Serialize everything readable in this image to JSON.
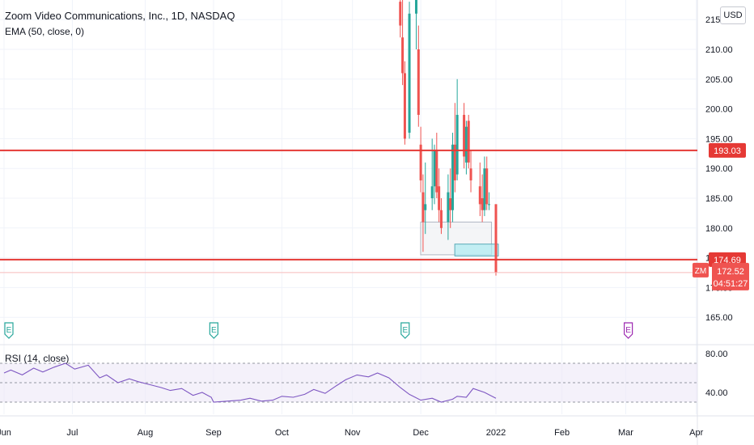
{
  "header": {
    "title": "Zoom Video Communications, Inc., 1D, NASDAQ",
    "indicator": "EMA (50, close, 0)",
    "currency": "USD"
  },
  "rsi_pane": {
    "label": "RSI (14, close)"
  },
  "colors": {
    "up": "#26a69a",
    "down": "#ef5350",
    "level_line": "#e53935",
    "rsi_line": "#7e57c2",
    "rsi_band": "#ede7f6",
    "earnings": "#26a69a",
    "earnings_upcoming": "#9c27b0",
    "box_gray": "#e9ecef",
    "box_teal": "#b2ebf2"
  },
  "chart_data": [
    {
      "type": "candlestick",
      "title": "Zoom Video Communications, Inc., 1D, NASDAQ",
      "symbol": "ZM",
      "currency": "USD",
      "y_ticks": [
        165,
        170,
        175,
        180,
        185,
        190,
        195,
        200,
        205,
        210,
        215
      ],
      "y_tick_labels": [
        "165.00",
        "170.00",
        "175.00",
        "180.00",
        "185.00",
        "190.00",
        "195.00",
        "200.00",
        "205.00",
        "210.00",
        "215.00"
      ],
      "x_tick_labels": [
        "Jun",
        "Jul",
        "Aug",
        "Sep",
        "Oct",
        "Nov",
        "Dec",
        "2022",
        "Feb",
        "Mar",
        "Apr"
      ],
      "x_tick_dates": [
        "2021-06-01",
        "2021-07-01",
        "2021-08-02",
        "2021-09-01",
        "2021-10-01",
        "2021-11-01",
        "2021-12-01",
        "2022-01-03",
        "2022-02-01",
        "2022-03-01",
        "2022-04-01"
      ],
      "candles": [
        {
          "date": "2021-11-22",
          "open": 218,
          "high": 221,
          "low": 212,
          "close": 214
        },
        {
          "date": "2021-11-23",
          "open": 212,
          "high": 219,
          "low": 204,
          "close": 206
        },
        {
          "date": "2021-11-24",
          "open": 206,
          "high": 208,
          "low": 194,
          "close": 195
        },
        {
          "date": "2021-11-26",
          "open": 196,
          "high": 218,
          "low": 195,
          "close": 216
        },
        {
          "date": "2021-11-29",
          "open": 216,
          "high": 221,
          "low": 210,
          "close": 219
        },
        {
          "date": "2021-11-30",
          "open": 210,
          "high": 214,
          "low": 197,
          "close": 199
        },
        {
          "date": "2021-12-01",
          "open": 194,
          "high": 197,
          "low": 186,
          "close": 188
        },
        {
          "date": "2021-12-02",
          "open": 186,
          "high": 189,
          "low": 176,
          "close": 181
        },
        {
          "date": "2021-12-03",
          "open": 183,
          "high": 191,
          "low": 179,
          "close": 184
        },
        {
          "date": "2021-12-06",
          "open": 185,
          "high": 195,
          "low": 183,
          "close": 187
        },
        {
          "date": "2021-12-07",
          "open": 187,
          "high": 194,
          "low": 184,
          "close": 193
        },
        {
          "date": "2021-12-08",
          "open": 193,
          "high": 196,
          "low": 185,
          "close": 186
        },
        {
          "date": "2021-12-09",
          "open": 187,
          "high": 190,
          "low": 181,
          "close": 183
        },
        {
          "date": "2021-12-10",
          "open": 183,
          "high": 185,
          "low": 179,
          "close": 180
        },
        {
          "date": "2021-12-13",
          "open": 181,
          "high": 189,
          "low": 178,
          "close": 186
        },
        {
          "date": "2021-12-14",
          "open": 185,
          "high": 190,
          "low": 180,
          "close": 183
        },
        {
          "date": "2021-12-15",
          "open": 183,
          "high": 196,
          "low": 181,
          "close": 194
        },
        {
          "date": "2021-12-16",
          "open": 194,
          "high": 201,
          "low": 186,
          "close": 188
        },
        {
          "date": "2021-12-17",
          "open": 189,
          "high": 205,
          "low": 188,
          "close": 199
        },
        {
          "date": "2021-12-20",
          "open": 199,
          "high": 201,
          "low": 190,
          "close": 192
        },
        {
          "date": "2021-12-21",
          "open": 191,
          "high": 198,
          "low": 189,
          "close": 197
        },
        {
          "date": "2021-12-22",
          "open": 198,
          "high": 199,
          "low": 190,
          "close": 191
        },
        {
          "date": "2021-12-23",
          "open": 190,
          "high": 193,
          "low": 186,
          "close": 188
        },
        {
          "date": "2021-12-27",
          "open": 187,
          "high": 191,
          "low": 182,
          "close": 184
        },
        {
          "date": "2021-12-28",
          "open": 185,
          "high": 189,
          "low": 181,
          "close": 183
        },
        {
          "date": "2021-12-29",
          "open": 183,
          "high": 192,
          "low": 182,
          "close": 190
        },
        {
          "date": "2021-12-30",
          "open": 190,
          "high": 192,
          "low": 183,
          "close": 184
        },
        {
          "date": "2021-12-31",
          "open": 184,
          "high": 186,
          "low": 183,
          "close": 184
        },
        {
          "date": "2022-01-03",
          "open": 184,
          "high": 184,
          "low": 172,
          "close": 172.52
        }
      ],
      "levels": [
        {
          "label": "193.03",
          "value": 193.03
        },
        {
          "label": "174.69",
          "value": 174.69
        }
      ],
      "last_price": {
        "symbol": "ZM",
        "label": "172.52",
        "value": 172.52,
        "countdown": "04:51:27"
      },
      "boxes": [
        {
          "start": "2021-12-02",
          "end": "2021-12-31",
          "low": 175.5,
          "high": 181
        },
        {
          "start": "2021-12-17",
          "end": "2022-01-03",
          "low": 175.3,
          "high": 177.3
        }
      ],
      "earnings_markers": [
        {
          "date": "2021-06-01",
          "glyph": "E",
          "status": "reported"
        },
        {
          "date": "2021-08-30",
          "glyph": "E",
          "status": "reported"
        },
        {
          "date": "2021-11-22",
          "glyph": "E",
          "status": "reported"
        },
        {
          "date": "2022-02-28",
          "glyph": "E",
          "status": "upcoming"
        }
      ],
      "grid": true
    },
    {
      "type": "line",
      "title": "RSI (14, close)",
      "y_ticks": [
        40,
        80
      ],
      "y_tick_labels": [
        "40.00",
        "80.00"
      ],
      "band": [
        30,
        70
      ],
      "midline": 50,
      "series": [
        {
          "name": "RSI (14, close)",
          "x": [
            "2021-06-01",
            "2021-06-04",
            "2021-06-09",
            "2021-06-14",
            "2021-06-18",
            "2021-06-23",
            "2021-06-28",
            "2021-07-02",
            "2021-07-08",
            "2021-07-13",
            "2021-07-16",
            "2021-07-21",
            "2021-07-26",
            "2021-07-30",
            "2021-08-04",
            "2021-08-09",
            "2021-08-13",
            "2021-08-18",
            "2021-08-23",
            "2021-08-27",
            "2021-08-31",
            "2021-09-01",
            "2021-09-07",
            "2021-09-13",
            "2021-09-17",
            "2021-09-22",
            "2021-09-27",
            "2021-10-01",
            "2021-10-06",
            "2021-10-11",
            "2021-10-15",
            "2021-10-20",
            "2021-10-25",
            "2021-10-29",
            "2021-11-03",
            "2021-11-08",
            "2021-11-12",
            "2021-11-17",
            "2021-11-22",
            "2021-11-26",
            "2021-12-01",
            "2021-12-06",
            "2021-12-10",
            "2021-12-15",
            "2021-12-17",
            "2021-12-21",
            "2021-12-24",
            "2021-12-29",
            "2022-01-03"
          ],
          "y": [
            60,
            63,
            58,
            65,
            61,
            66,
            70,
            64,
            68,
            55,
            58,
            50,
            54,
            51,
            48,
            45,
            42,
            44,
            37,
            40,
            35,
            30,
            31,
            32,
            34,
            31,
            32,
            36,
            35,
            38,
            43,
            39,
            47,
            53,
            58,
            56,
            60,
            55,
            45,
            38,
            32,
            34,
            30,
            33,
            36,
            35,
            44,
            40,
            34
          ]
        }
      ]
    }
  ]
}
